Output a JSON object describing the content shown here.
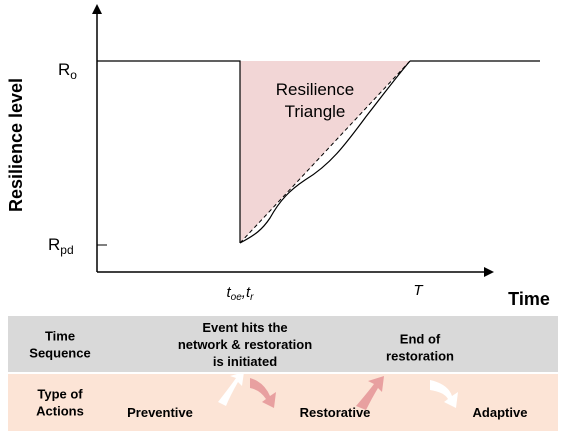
{
  "chart": {
    "y_axis_label": "Resilience level",
    "x_axis_label": "Time",
    "y_labels": [
      {
        "base": "R",
        "sub": "o"
      },
      {
        "base": "R",
        "sub": "pd"
      }
    ],
    "x_labels": [
      {
        "parts": [
          "t",
          "oe",
          ",t",
          "r"
        ]
      },
      {
        "parts": [
          "T"
        ]
      }
    ],
    "annotation": [
      "Resilience",
      "Triangle"
    ]
  },
  "table": {
    "rows": [
      {
        "header": [
          "Time",
          "Sequence"
        ],
        "cells": [
          [
            "Event hits the",
            "network & restoration",
            "is initiated"
          ],
          [
            "End of",
            "restoration"
          ]
        ]
      },
      {
        "header": [
          "Type of",
          "Actions"
        ],
        "cells": [
          [
            "Preventive"
          ],
          [
            "Restorative"
          ],
          [
            "Adaptive"
          ]
        ]
      }
    ]
  }
}
